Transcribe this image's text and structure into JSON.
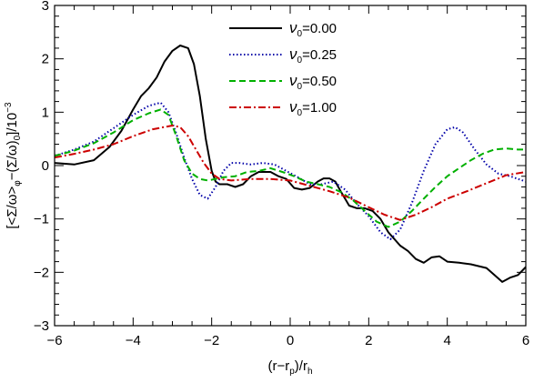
{
  "chart_data": {
    "type": "line",
    "title": "",
    "xlabel": {
      "pre": "(r−r",
      "sub1": "p",
      "mid": ")/r",
      "sub2": "h"
    },
    "ylabel": {
      "pre": "[<Σ/ω>",
      "sub1": "φ",
      "mid": "−(Σ/ω)",
      "sub2": "0",
      "post": "]/10",
      "sup": "−3"
    },
    "xlim": [
      -6,
      6
    ],
    "ylim": [
      -3,
      3
    ],
    "xticks": [
      -6,
      -4,
      -2,
      0,
      2,
      4,
      6
    ],
    "yticks": [
      -3,
      -2,
      -1,
      0,
      1,
      2,
      3
    ],
    "legend_position": "top-center",
    "series": [
      {
        "name": "ν0=0.00",
        "name_greek": "ν",
        "name_sub": "0",
        "name_value": "=0.00",
        "color": "#000000",
        "dash": "solid",
        "x": [
          -6,
          -5.5,
          -5,
          -4.6,
          -4.3,
          -4.0,
          -3.8,
          -3.6,
          -3.4,
          -3.2,
          -3.0,
          -2.8,
          -2.6,
          -2.45,
          -2.3,
          -2.15,
          -2.0,
          -1.9,
          -1.8,
          -1.6,
          -1.4,
          -1.2,
          -1.0,
          -0.8,
          -0.5,
          -0.3,
          -0.1,
          0.1,
          0.3,
          0.5,
          0.7,
          0.85,
          1.0,
          1.15,
          1.3,
          1.5,
          1.7,
          1.9,
          2.1,
          2.3,
          2.5,
          2.8,
          3.0,
          3.2,
          3.4,
          3.6,
          3.8,
          4.0,
          4.3,
          4.6,
          5.0,
          5.2,
          5.4,
          5.6,
          5.8,
          6.0
        ],
        "y": [
          0.05,
          0.02,
          0.1,
          0.35,
          0.65,
          1.05,
          1.3,
          1.45,
          1.65,
          1.95,
          2.15,
          2.25,
          2.2,
          1.9,
          1.3,
          0.5,
          -0.1,
          -0.3,
          -0.35,
          -0.35,
          -0.4,
          -0.35,
          -0.2,
          -0.12,
          -0.12,
          -0.2,
          -0.25,
          -0.42,
          -0.45,
          -0.42,
          -0.3,
          -0.24,
          -0.24,
          -0.3,
          -0.5,
          -0.75,
          -0.8,
          -0.8,
          -0.85,
          -1.0,
          -1.25,
          -1.5,
          -1.6,
          -1.75,
          -1.82,
          -1.72,
          -1.7,
          -1.8,
          -1.82,
          -1.85,
          -1.92,
          -2.05,
          -2.18,
          -2.1,
          -2.05,
          -1.9
        ]
      },
      {
        "name": "ν0=0.25",
        "name_greek": "ν",
        "name_sub": "0",
        "name_value": "=0.25",
        "color": "#0000a8",
        "dash": "dotted",
        "x": [
          -6,
          -5.5,
          -5,
          -4.5,
          -4.0,
          -3.6,
          -3.3,
          -3.1,
          -2.9,
          -2.7,
          -2.5,
          -2.3,
          -2.1,
          -1.9,
          -1.7,
          -1.5,
          -1.3,
          -1.0,
          -0.7,
          -0.4,
          -0.1,
          0.2,
          0.5,
          0.8,
          1.1,
          1.4,
          1.7,
          2.0,
          2.3,
          2.55,
          2.8,
          3.1,
          3.4,
          3.7,
          4.0,
          4.2,
          4.4,
          4.7,
          5.0,
          5.3,
          5.6,
          6.0
        ],
        "y": [
          0.18,
          0.3,
          0.45,
          0.7,
          0.95,
          1.12,
          1.18,
          1.0,
          0.6,
          0.15,
          -0.25,
          -0.55,
          -0.62,
          -0.4,
          -0.1,
          0.05,
          0.05,
          0.02,
          0.05,
          0.02,
          -0.1,
          -0.22,
          -0.35,
          -0.35,
          -0.3,
          -0.45,
          -0.72,
          -0.95,
          -1.25,
          -1.38,
          -1.2,
          -0.7,
          -0.1,
          0.4,
          0.68,
          0.72,
          0.62,
          0.3,
          0.02,
          -0.15,
          -0.2,
          -0.3
        ]
      },
      {
        "name": "ν0=0.50",
        "name_greek": "ν",
        "name_sub": "0",
        "name_value": "=0.50",
        "color": "#00b000",
        "dash": "dashed",
        "x": [
          -6,
          -5.5,
          -5,
          -4.5,
          -4.0,
          -3.6,
          -3.3,
          -3.1,
          -2.9,
          -2.7,
          -2.5,
          -2.3,
          -2.1,
          -1.9,
          -1.7,
          -1.4,
          -1.1,
          -0.8,
          -0.5,
          -0.2,
          0.1,
          0.4,
          0.7,
          1.0,
          1.3,
          1.6,
          1.9,
          2.2,
          2.5,
          2.8,
          3.1,
          3.4,
          3.7,
          4.0,
          4.3,
          4.6,
          4.9,
          5.2,
          5.5,
          5.8,
          6.0
        ],
        "y": [
          0.18,
          0.28,
          0.42,
          0.62,
          0.85,
          0.98,
          1.05,
          0.95,
          0.55,
          0.1,
          -0.15,
          -0.25,
          -0.28,
          -0.25,
          -0.22,
          -0.2,
          -0.12,
          -0.1,
          -0.05,
          -0.12,
          -0.2,
          -0.3,
          -0.35,
          -0.4,
          -0.5,
          -0.65,
          -0.85,
          -1.05,
          -1.15,
          -1.05,
          -0.85,
          -0.62,
          -0.4,
          -0.2,
          -0.05,
          0.1,
          0.22,
          0.3,
          0.32,
          0.3,
          0.3
        ]
      },
      {
        "name": "ν0=1.00",
        "name_greek": "ν",
        "name_sub": "0",
        "name_value": "=1.00",
        "color": "#cc0000",
        "dash": "dashdot",
        "x": [
          -6,
          -5.5,
          -5,
          -4.5,
          -4.0,
          -3.5,
          -3.0,
          -2.8,
          -2.6,
          -2.4,
          -2.2,
          -2.0,
          -1.8,
          -1.5,
          -1.0,
          -0.5,
          0.0,
          0.5,
          1.0,
          1.5,
          2.0,
          2.4,
          2.8,
          3.2,
          3.6,
          4.0,
          4.5,
          5.0,
          5.5,
          6.0
        ],
        "y": [
          0.15,
          0.22,
          0.3,
          0.4,
          0.55,
          0.68,
          0.75,
          0.72,
          0.55,
          0.3,
          0.05,
          -0.15,
          -0.25,
          -0.28,
          -0.25,
          -0.25,
          -0.28,
          -0.38,
          -0.48,
          -0.6,
          -0.78,
          -0.92,
          -1.02,
          -0.92,
          -0.78,
          -0.62,
          -0.48,
          -0.33,
          -0.18,
          -0.12
        ]
      }
    ]
  }
}
